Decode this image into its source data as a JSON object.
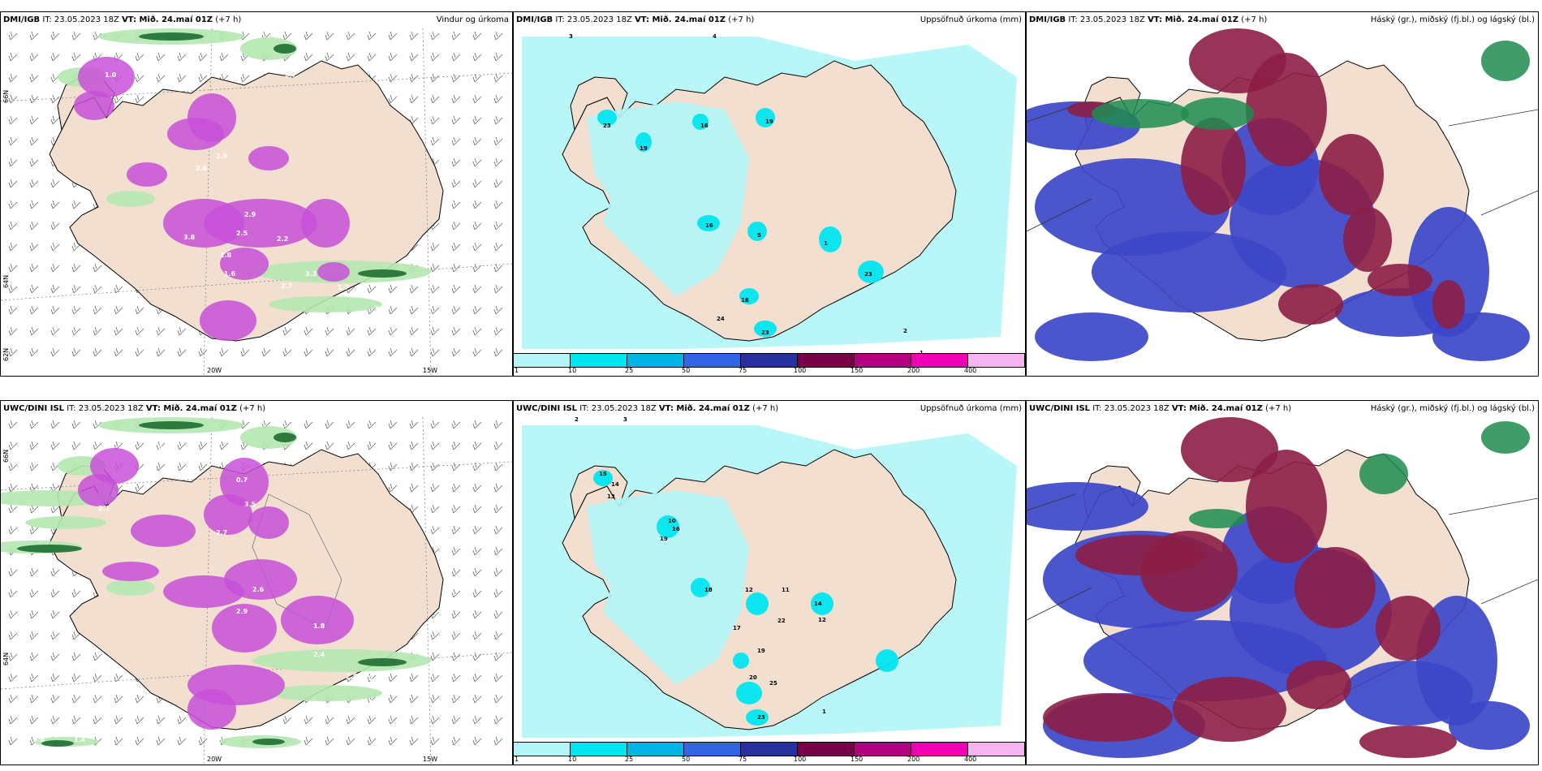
{
  "panels": [
    {
      "id": "p1",
      "source": "DMI/IGB",
      "it": " IT: 23.05.2023 18Z ",
      "vt_label": "VT:",
      "vt": " Mið. 24.maí 01Z",
      "plus": " (+7 h)",
      "field": "Vindur og úrkoma",
      "type": "wind"
    },
    {
      "id": "p2",
      "source": "DMI/IGB",
      "it": " IT: 23.05.2023 18Z ",
      "vt_label": "VT:",
      "vt": " Mið. 24.maí 01Z",
      "plus": " (+7 h)",
      "field": "Uppsöfnuð úrkoma (mm)",
      "type": "accum"
    },
    {
      "id": "p3",
      "source": "DMI/IGB",
      "it": " IT: 23.05.2023 18Z ",
      "vt_label": "VT:",
      "vt": " Mið. 24.maí 01Z",
      "plus": " (+7 h)",
      "field": "Háský (gr.), miðský (fj.bl.) og lágský (bl.)",
      "type": "cloud"
    },
    {
      "id": "p4",
      "source": "UWC/DINI ISL",
      "it": " IT: 23.05.2023 18Z ",
      "vt_label": "VT:",
      "vt": " Mið. 24.maí 01Z",
      "plus": " (+7 h)",
      "field": "",
      "type": "wind"
    },
    {
      "id": "p5",
      "source": "UWC/DINI ISL",
      "it": " IT: 23.05.2023 18Z ",
      "vt_label": "VT:",
      "vt": " Mið. 24.maí 01Z",
      "plus": " (+7 h)",
      "field": "Uppsöfnuð úrkoma (mm)",
      "type": "accum"
    },
    {
      "id": "p6",
      "source": "UWC/DINI ISL",
      "it": " IT: 23.05.2023 18Z ",
      "vt_label": "VT:",
      "vt": " Mið. 24.maí 01Z",
      "plus": " (+7 h)",
      "field": "Háský (gr.), miðský (fj.bl.) og lágský (bl.)",
      "type": "cloud"
    }
  ],
  "lon_labels": [
    "20W",
    "15W"
  ],
  "lat_labels": [
    "66N",
    "64N",
    "62N"
  ],
  "colorbar": {
    "labels": [
      "1",
      "10",
      "25",
      "50",
      "75",
      "100",
      "150",
      "200",
      "400"
    ],
    "colors": [
      "#b4f5f7",
      "#00e6f0",
      "#00b4e6",
      "#3264e6",
      "#2830a0",
      "#780046",
      "#b40080",
      "#f000b4",
      "#f5b4f0"
    ]
  },
  "colors": {
    "land": "#f2dfd0",
    "precip_light": "#b4f5f7",
    "precip_mid": "#00e6f0",
    "precip_purple": "#c850d8",
    "green_light": "#b4e8b0",
    "green_dark": "#1e6e32",
    "cloud_high": "#8c1e46",
    "cloud_mid": "#3c46c8",
    "cloud_low": "#1e8c50"
  },
  "p1_values": [
    "0.7",
    "1.0",
    "2.9",
    "2.6",
    "2.9",
    "3.8",
    "2.8",
    "2.2",
    "2.7",
    "3.3",
    "1.7",
    "2.7",
    "2.5",
    "1.6",
    "1.1"
  ],
  "p2_values": [
    "3",
    "4",
    "23",
    "19",
    "16",
    "19",
    "16",
    "5",
    "1",
    "23",
    "18",
    "23",
    "24",
    "2",
    "1"
  ],
  "p4_values": [
    "0.6",
    "0.7",
    "1.6",
    "2.1",
    "3.5",
    "2.7",
    "2.6",
    "2.9",
    "1.8",
    "2.4",
    "2.5",
    "0.7",
    "0.6",
    "1.0",
    "0.8",
    "1.4"
  ],
  "p5_values": [
    "2",
    "3",
    "15",
    "14",
    "13",
    "10",
    "16",
    "19",
    "18",
    "12",
    "11",
    "22",
    "17",
    "19",
    "14",
    "12",
    "20",
    "25",
    "23",
    "1"
  ]
}
